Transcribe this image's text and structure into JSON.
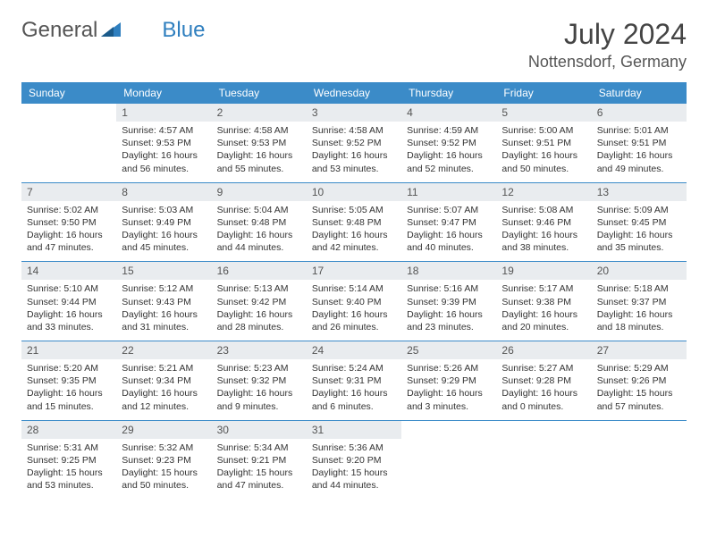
{
  "brand": {
    "part1": "General",
    "part2": "Blue"
  },
  "title": "July 2024",
  "location": "Nottensdorf, Germany",
  "header_bg": "#3b8bc8",
  "header_text_color": "#ffffff",
  "daynum_bg": "#e9ecef",
  "border_color": "#3b8bc8",
  "weekdays": [
    "Sunday",
    "Monday",
    "Tuesday",
    "Wednesday",
    "Thursday",
    "Friday",
    "Saturday"
  ],
  "weeks": [
    [
      null,
      {
        "d": "1",
        "sr": "4:57 AM",
        "ss": "9:53 PM",
        "dl": "16 hours and 56 minutes."
      },
      {
        "d": "2",
        "sr": "4:58 AM",
        "ss": "9:53 PM",
        "dl": "16 hours and 55 minutes."
      },
      {
        "d": "3",
        "sr": "4:58 AM",
        "ss": "9:52 PM",
        "dl": "16 hours and 53 minutes."
      },
      {
        "d": "4",
        "sr": "4:59 AM",
        "ss": "9:52 PM",
        "dl": "16 hours and 52 minutes."
      },
      {
        "d": "5",
        "sr": "5:00 AM",
        "ss": "9:51 PM",
        "dl": "16 hours and 50 minutes."
      },
      {
        "d": "6",
        "sr": "5:01 AM",
        "ss": "9:51 PM",
        "dl": "16 hours and 49 minutes."
      }
    ],
    [
      {
        "d": "7",
        "sr": "5:02 AM",
        "ss": "9:50 PM",
        "dl": "16 hours and 47 minutes."
      },
      {
        "d": "8",
        "sr": "5:03 AM",
        "ss": "9:49 PM",
        "dl": "16 hours and 45 minutes."
      },
      {
        "d": "9",
        "sr": "5:04 AM",
        "ss": "9:48 PM",
        "dl": "16 hours and 44 minutes."
      },
      {
        "d": "10",
        "sr": "5:05 AM",
        "ss": "9:48 PM",
        "dl": "16 hours and 42 minutes."
      },
      {
        "d": "11",
        "sr": "5:07 AM",
        "ss": "9:47 PM",
        "dl": "16 hours and 40 minutes."
      },
      {
        "d": "12",
        "sr": "5:08 AM",
        "ss": "9:46 PM",
        "dl": "16 hours and 38 minutes."
      },
      {
        "d": "13",
        "sr": "5:09 AM",
        "ss": "9:45 PM",
        "dl": "16 hours and 35 minutes."
      }
    ],
    [
      {
        "d": "14",
        "sr": "5:10 AM",
        "ss": "9:44 PM",
        "dl": "16 hours and 33 minutes."
      },
      {
        "d": "15",
        "sr": "5:12 AM",
        "ss": "9:43 PM",
        "dl": "16 hours and 31 minutes."
      },
      {
        "d": "16",
        "sr": "5:13 AM",
        "ss": "9:42 PM",
        "dl": "16 hours and 28 minutes."
      },
      {
        "d": "17",
        "sr": "5:14 AM",
        "ss": "9:40 PM",
        "dl": "16 hours and 26 minutes."
      },
      {
        "d": "18",
        "sr": "5:16 AM",
        "ss": "9:39 PM",
        "dl": "16 hours and 23 minutes."
      },
      {
        "d": "19",
        "sr": "5:17 AM",
        "ss": "9:38 PM",
        "dl": "16 hours and 20 minutes."
      },
      {
        "d": "20",
        "sr": "5:18 AM",
        "ss": "9:37 PM",
        "dl": "16 hours and 18 minutes."
      }
    ],
    [
      {
        "d": "21",
        "sr": "5:20 AM",
        "ss": "9:35 PM",
        "dl": "16 hours and 15 minutes."
      },
      {
        "d": "22",
        "sr": "5:21 AM",
        "ss": "9:34 PM",
        "dl": "16 hours and 12 minutes."
      },
      {
        "d": "23",
        "sr": "5:23 AM",
        "ss": "9:32 PM",
        "dl": "16 hours and 9 minutes."
      },
      {
        "d": "24",
        "sr": "5:24 AM",
        "ss": "9:31 PM",
        "dl": "16 hours and 6 minutes."
      },
      {
        "d": "25",
        "sr": "5:26 AM",
        "ss": "9:29 PM",
        "dl": "16 hours and 3 minutes."
      },
      {
        "d": "26",
        "sr": "5:27 AM",
        "ss": "9:28 PM",
        "dl": "16 hours and 0 minutes."
      },
      {
        "d": "27",
        "sr": "5:29 AM",
        "ss": "9:26 PM",
        "dl": "15 hours and 57 minutes."
      }
    ],
    [
      {
        "d": "28",
        "sr": "5:31 AM",
        "ss": "9:25 PM",
        "dl": "15 hours and 53 minutes."
      },
      {
        "d": "29",
        "sr": "5:32 AM",
        "ss": "9:23 PM",
        "dl": "15 hours and 50 minutes."
      },
      {
        "d": "30",
        "sr": "5:34 AM",
        "ss": "9:21 PM",
        "dl": "15 hours and 47 minutes."
      },
      {
        "d": "31",
        "sr": "5:36 AM",
        "ss": "9:20 PM",
        "dl": "15 hours and 44 minutes."
      },
      null,
      null,
      null
    ]
  ],
  "labels": {
    "sunrise": "Sunrise: ",
    "sunset": "Sunset: ",
    "daylight": "Daylight: "
  }
}
